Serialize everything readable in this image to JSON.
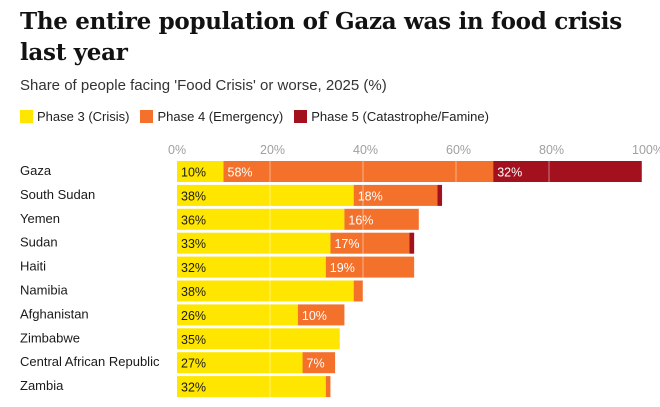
{
  "chart_data": {
    "type": "bar",
    "orientation": "horizontal",
    "stacked": true,
    "title": "The entire population of Gaza was in food crisis last year",
    "subtitle": "Share of people facing 'Food Crisis' or worse, 2025 (%)",
    "xlim": [
      0,
      100
    ],
    "ticks": [
      0,
      20,
      40,
      60,
      80,
      100
    ],
    "tick_labels": [
      "0%",
      "20%",
      "40%",
      "60%",
      "80%",
      "100%"
    ],
    "legend_position": "top-left",
    "categories": [
      "Gaza",
      "South Sudan",
      "Yemen",
      "Sudan",
      "Haiti",
      "Namibia",
      "Afghanistan",
      "Zimbabwe",
      "Central African Republic",
      "Zambia"
    ],
    "series": [
      {
        "name": "Phase 3 (Crisis)",
        "color": "#ffe600",
        "text_color": "#1a1a1a",
        "values": [
          10,
          38,
          36,
          33,
          32,
          38,
          26,
          35,
          27,
          32
        ],
        "labels": [
          "10%",
          "38%",
          "36%",
          "33%",
          "32%",
          "38%",
          "26%",
          "35%",
          "27%",
          "32%"
        ]
      },
      {
        "name": "Phase 4 (Emergency)",
        "color": "#f4712c",
        "text_color": "#ffffff",
        "values": [
          58,
          18,
          16,
          17,
          19,
          2,
          10,
          0,
          7,
          1
        ],
        "labels": [
          "58%",
          "18%",
          "16%",
          "17%",
          "19%",
          "",
          "10%",
          "",
          "7%",
          ""
        ]
      },
      {
        "name": "Phase 5 (Catastrophe/Famine)",
        "color": "#a3111f",
        "text_color": "#ffffff",
        "values": [
          32,
          1,
          0,
          1,
          0,
          0,
          0,
          0,
          0,
          0
        ],
        "labels": [
          "32%",
          "",
          "",
          "",
          "",
          "",
          "",
          "",
          "",
          ""
        ]
      }
    ]
  }
}
